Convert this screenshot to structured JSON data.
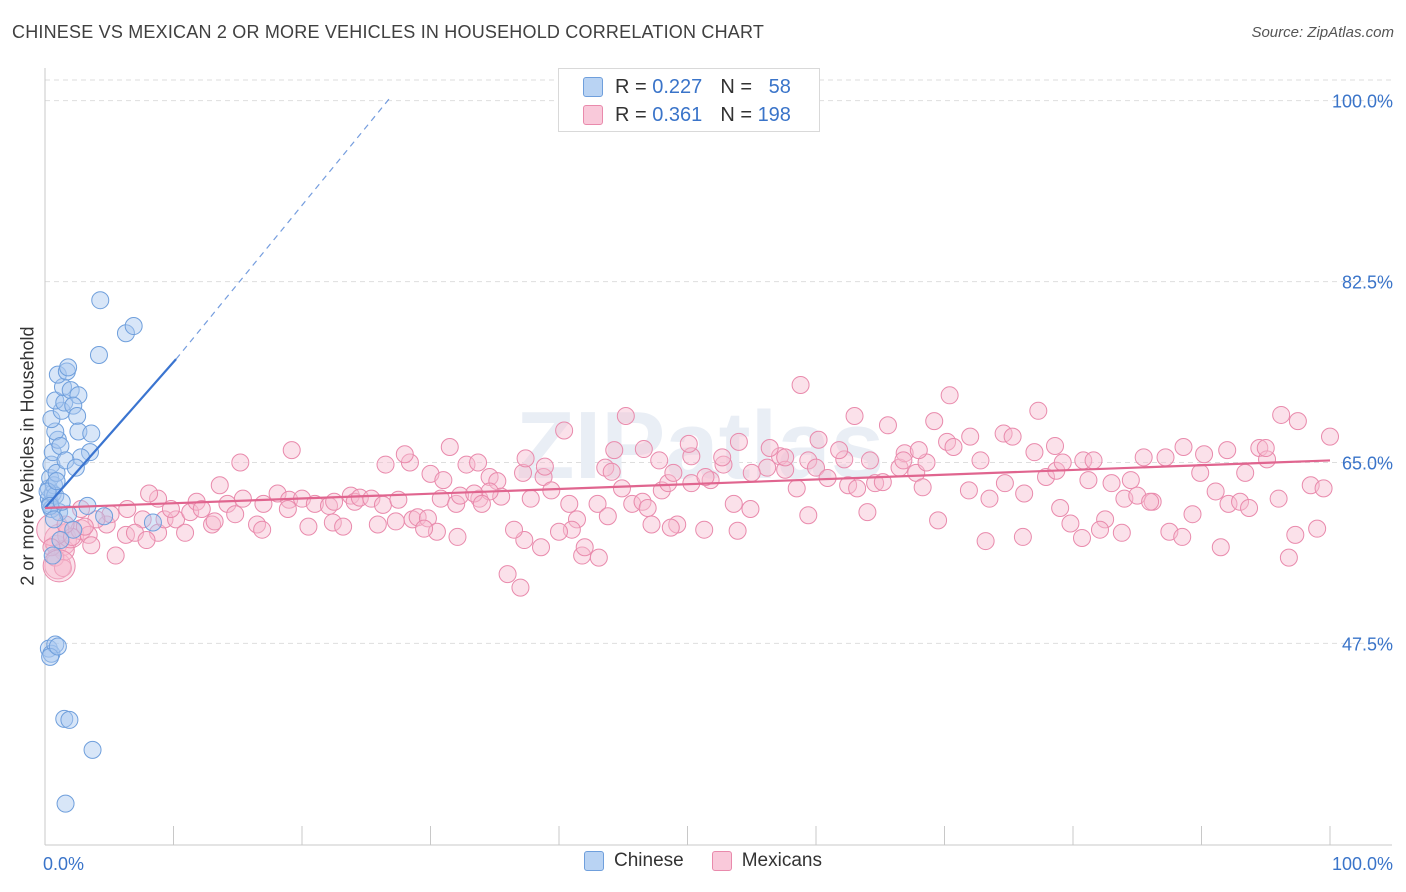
{
  "title": "CHINESE VS MEXICAN 2 OR MORE VEHICLES IN HOUSEHOLD CORRELATION CHART",
  "source": "Source: ZipAtlas.com",
  "watermark": "ZIPatlas",
  "legend": [
    {
      "r_label": "R =",
      "r_value": "0.227",
      "n_label": "N =",
      "n_value": "58"
    },
    {
      "r_label": "R =",
      "r_value": "0.361",
      "n_label": "N =",
      "n_value": "198"
    }
  ],
  "colors": {
    "chinese_fill": "#a9c8f0",
    "chinese_stroke": "#6f9fdc",
    "chinese_line": "#3a74d0",
    "mexican_fill": "#f6bcd0",
    "mexican_stroke": "#e98aac",
    "mexican_line": "#e0658f",
    "axis_label": "#3a74c9",
    "grid": "#dedede"
  },
  "chart_data": {
    "type": "scatter",
    "title": "CHINESE VS MEXICAN 2 OR MORE VEHICLES IN HOUSEHOLD CORRELATION CHART",
    "xlabel": "",
    "ylabel": "2 or more Vehicles in Household",
    "xlim": [
      0,
      100
    ],
    "ylim": [
      28,
      102
    ],
    "x_tick_labels": [
      "0.0%",
      "100.0%"
    ],
    "y_ticks": [
      47.5,
      65.0,
      82.5,
      100.0
    ],
    "y_tick_labels": [
      "47.5%",
      "65.0%",
      "82.5%",
      "100.0%"
    ],
    "series": [
      {
        "name": "Chinese",
        "r": 0.227,
        "n": 58,
        "trend": {
          "x0": 0.0,
          "y0": 60.6,
          "x1": 10.2,
          "y1": 75.0,
          "dash_to_x": 27.0,
          "dash_to_y": 100.5
        },
        "points": [
          [
            0.3,
            61.5
          ],
          [
            0.3,
            62.5
          ],
          [
            0.4,
            61.0
          ],
          [
            0.5,
            60.5
          ],
          [
            0.6,
            62.0
          ],
          [
            0.4,
            63.5
          ],
          [
            0.7,
            62.8
          ],
          [
            0.8,
            61.8
          ],
          [
            0.5,
            64.8
          ],
          [
            0.9,
            64.0
          ],
          [
            0.6,
            66.0
          ],
          [
            1.0,
            67.2
          ],
          [
            0.8,
            68.0
          ],
          [
            1.2,
            66.6
          ],
          [
            0.5,
            69.2
          ],
          [
            1.3,
            70.0
          ],
          [
            0.8,
            71.0
          ],
          [
            1.5,
            70.8
          ],
          [
            1.4,
            72.3
          ],
          [
            1.0,
            73.5
          ],
          [
            1.7,
            73.8
          ],
          [
            2.0,
            72.0
          ],
          [
            2.6,
            71.5
          ],
          [
            1.8,
            74.2
          ],
          [
            2.2,
            70.5
          ],
          [
            2.5,
            69.5
          ],
          [
            2.6,
            68.0
          ],
          [
            3.6,
            67.8
          ],
          [
            3.5,
            66.0
          ],
          [
            2.8,
            65.5
          ],
          [
            1.6,
            65.2
          ],
          [
            2.4,
            64.5
          ],
          [
            1.1,
            60.2
          ],
          [
            1.8,
            60.0
          ],
          [
            3.3,
            60.8
          ],
          [
            4.6,
            59.8
          ],
          [
            2.2,
            58.5
          ],
          [
            0.6,
            56.0
          ],
          [
            1.2,
            57.5
          ],
          [
            8.4,
            59.2
          ],
          [
            0.3,
            47.0
          ],
          [
            0.5,
            46.5
          ],
          [
            0.8,
            47.4
          ],
          [
            0.4,
            46.2
          ],
          [
            1.0,
            47.2
          ],
          [
            1.5,
            40.2
          ],
          [
            1.9,
            40.1
          ],
          [
            3.7,
            37.2
          ],
          [
            1.6,
            32.0
          ],
          [
            4.2,
            75.4
          ],
          [
            6.3,
            77.5
          ],
          [
            6.9,
            78.2
          ],
          [
            4.3,
            80.7
          ],
          [
            0.2,
            62.2
          ],
          [
            0.4,
            60.8
          ],
          [
            0.7,
            59.5
          ],
          [
            1.3,
            61.2
          ],
          [
            0.9,
            63.2
          ]
        ]
      },
      {
        "name": "Mexicans",
        "r": 0.361,
        "n": 198,
        "trend": {
          "x0": 0.0,
          "y0": 60.6,
          "x1": 100.0,
          "y1": 65.2
        },
        "points": [
          [
            0.9,
            57.0
          ],
          [
            1.0,
            55.0
          ],
          [
            1.2,
            57.5
          ],
          [
            1.5,
            56.5
          ],
          [
            2.0,
            58.0
          ],
          [
            0.6,
            58.5
          ],
          [
            2.8,
            58.5
          ],
          [
            3.4,
            58.0
          ],
          [
            4.8,
            59.0
          ],
          [
            5.5,
            56.0
          ],
          [
            6.3,
            58.0
          ],
          [
            7.6,
            59.5
          ],
          [
            7.0,
            58.2
          ],
          [
            8.8,
            58.2
          ],
          [
            7.9,
            57.5
          ],
          [
            9.3,
            59.5
          ],
          [
            10.2,
            59.5
          ],
          [
            11.3,
            60.2
          ],
          [
            8.8,
            61.5
          ],
          [
            11.8,
            61.2
          ],
          [
            13.0,
            59.0
          ],
          [
            13.2,
            59.3
          ],
          [
            14.2,
            61.0
          ],
          [
            13.6,
            62.8
          ],
          [
            15.4,
            61.5
          ],
          [
            15.2,
            65.0
          ],
          [
            17.0,
            61.0
          ],
          [
            16.5,
            59.0
          ],
          [
            18.1,
            62.0
          ],
          [
            19.0,
            61.4
          ],
          [
            19.2,
            66.2
          ],
          [
            20.0,
            61.5
          ],
          [
            21.0,
            61.0
          ],
          [
            22.1,
            60.8
          ],
          [
            22.5,
            61.2
          ],
          [
            22.4,
            59.2
          ],
          [
            23.2,
            58.8
          ],
          [
            23.8,
            61.8
          ],
          [
            24.1,
            61.2
          ],
          [
            24.5,
            61.6
          ],
          [
            25.4,
            61.5
          ],
          [
            25.9,
            59.0
          ],
          [
            26.3,
            60.9
          ],
          [
            27.5,
            61.4
          ],
          [
            28.4,
            65.0
          ],
          [
            28.6,
            59.5
          ],
          [
            29.0,
            59.7
          ],
          [
            29.8,
            59.6
          ],
          [
            30.0,
            63.9
          ],
          [
            30.8,
            61.5
          ],
          [
            31.5,
            66.5
          ],
          [
            32.0,
            61.0
          ],
          [
            32.8,
            64.8
          ],
          [
            32.3,
            61.8
          ],
          [
            33.8,
            61.5
          ],
          [
            34.6,
            63.6
          ],
          [
            35.2,
            63.2
          ],
          [
            35.5,
            61.7
          ],
          [
            37.2,
            64.0
          ],
          [
            37.4,
            65.4
          ],
          [
            37.8,
            61.5
          ],
          [
            38.8,
            63.6
          ],
          [
            38.9,
            64.6
          ],
          [
            40.8,
            61.0
          ],
          [
            40.4,
            68.1
          ],
          [
            41.4,
            59.5
          ],
          [
            41.8,
            56.0
          ],
          [
            43.0,
            61.0
          ],
          [
            43.6,
            64.5
          ],
          [
            44.1,
            64.1
          ],
          [
            44.9,
            62.5
          ],
          [
            45.7,
            61.0
          ],
          [
            46.5,
            61.2
          ],
          [
            46.9,
            60.6
          ],
          [
            48.0,
            62.3
          ],
          [
            48.5,
            63.0
          ],
          [
            49.2,
            59.0
          ],
          [
            50.3,
            65.6
          ],
          [
            51.3,
            58.5
          ],
          [
            50.3,
            63.0
          ],
          [
            51.8,
            63.3
          ],
          [
            52.8,
            64.8
          ],
          [
            53.6,
            61.0
          ],
          [
            53.9,
            58.4
          ],
          [
            54.9,
            60.5
          ],
          [
            56.2,
            64.5
          ],
          [
            57.2,
            65.6
          ],
          [
            57.6,
            64.3
          ],
          [
            58.5,
            62.5
          ],
          [
            59.4,
            65.2
          ],
          [
            60.0,
            64.5
          ],
          [
            59.4,
            59.9
          ],
          [
            60.9,
            63.5
          ],
          [
            62.2,
            65.3
          ],
          [
            62.5,
            62.8
          ],
          [
            63.2,
            62.5
          ],
          [
            64.0,
            60.2
          ],
          [
            64.6,
            63.0
          ],
          [
            65.6,
            68.6
          ],
          [
            66.5,
            64.5
          ],
          [
            66.9,
            65.9
          ],
          [
            67.8,
            64.0
          ],
          [
            68.3,
            62.6
          ],
          [
            68.6,
            65.0
          ],
          [
            69.5,
            59.4
          ],
          [
            70.2,
            67.0
          ],
          [
            70.7,
            66.5
          ],
          [
            71.9,
            62.3
          ],
          [
            72.8,
            65.2
          ],
          [
            73.5,
            61.5
          ],
          [
            74.6,
            67.8
          ],
          [
            75.3,
            67.5
          ],
          [
            76.2,
            62.0
          ],
          [
            77.0,
            66.0
          ],
          [
            77.9,
            63.6
          ],
          [
            78.7,
            64.2
          ],
          [
            79.2,
            65.0
          ],
          [
            79.0,
            60.6
          ],
          [
            79.8,
            59.1
          ],
          [
            80.8,
            65.2
          ],
          [
            81.2,
            63.3
          ],
          [
            81.6,
            65.2
          ],
          [
            82.5,
            59.5
          ],
          [
            83.0,
            63.0
          ],
          [
            84.0,
            61.5
          ],
          [
            84.5,
            63.3
          ],
          [
            85.0,
            61.8
          ],
          [
            86.2,
            61.2
          ],
          [
            87.5,
            58.3
          ],
          [
            88.6,
            66.5
          ],
          [
            89.3,
            60.0
          ],
          [
            90.2,
            65.8
          ],
          [
            91.1,
            62.2
          ],
          [
            91.5,
            56.8
          ],
          [
            92.1,
            61.0
          ],
          [
            93.0,
            61.2
          ],
          [
            93.7,
            60.6
          ],
          [
            94.5,
            66.4
          ],
          [
            95.1,
            65.3
          ],
          [
            96.0,
            61.5
          ],
          [
            96.8,
            55.8
          ],
          [
            97.3,
            58.0
          ],
          [
            98.5,
            62.8
          ],
          [
            99.0,
            58.6
          ],
          [
            99.5,
            62.5
          ],
          [
            100.0,
            67.5
          ],
          [
            97.5,
            69.0
          ],
          [
            96.2,
            69.6
          ],
          [
            95.0,
            66.4
          ],
          [
            93.4,
            64.0
          ],
          [
            92.0,
            66.2
          ],
          [
            89.9,
            64.0
          ],
          [
            88.5,
            57.8
          ],
          [
            87.2,
            65.5
          ],
          [
            86.0,
            61.2
          ],
          [
            85.5,
            65.5
          ],
          [
            83.8,
            58.2
          ],
          [
            82.1,
            58.5
          ],
          [
            80.7,
            57.7
          ],
          [
            78.6,
            66.6
          ],
          [
            77.3,
            70.0
          ],
          [
            76.1,
            57.8
          ],
          [
            74.7,
            63.0
          ],
          [
            73.2,
            57.4
          ],
          [
            72.0,
            67.5
          ],
          [
            70.4,
            71.5
          ],
          [
            69.2,
            69.0
          ],
          [
            68.0,
            66.2
          ],
          [
            66.8,
            65.2
          ],
          [
            65.2,
            63.1
          ],
          [
            64.2,
            65.2
          ],
          [
            63.0,
            69.5
          ],
          [
            61.8,
            66.2
          ],
          [
            60.2,
            67.2
          ],
          [
            58.8,
            72.5
          ],
          [
            57.6,
            65.5
          ],
          [
            56.4,
            66.4
          ],
          [
            55.0,
            64.0
          ],
          [
            54.0,
            67.0
          ],
          [
            52.7,
            65.5
          ],
          [
            51.4,
            63.6
          ],
          [
            50.1,
            66.8
          ],
          [
            48.9,
            64.0
          ],
          [
            47.8,
            65.2
          ],
          [
            46.6,
            66.3
          ],
          [
            45.2,
            69.5
          ],
          [
            44.3,
            66.2
          ],
          [
            43.1,
            55.8
          ],
          [
            42.0,
            56.8
          ],
          [
            41.0,
            58.5
          ],
          [
            40.0,
            58.3
          ],
          [
            38.6,
            56.8
          ],
          [
            37.3,
            57.5
          ],
          [
            36.5,
            58.5
          ],
          [
            34.6,
            62.2
          ],
          [
            33.4,
            62.0
          ],
          [
            32.1,
            57.8
          ],
          [
            30.5,
            58.3
          ],
          [
            29.5,
            58.6
          ],
          [
            10.9,
            58.2
          ],
          [
            12.2,
            60.5
          ],
          [
            14.8,
            60.0
          ],
          [
            16.9,
            58.5
          ],
          [
            18.9,
            60.5
          ],
          [
            9.8,
            60.5
          ],
          [
            8.1,
            62.0
          ],
          [
            6.4,
            60.5
          ],
          [
            5.1,
            60.0
          ],
          [
            4.0,
            59.5
          ],
          [
            3.1,
            58.8
          ],
          [
            2.1,
            57.8
          ],
          [
            1.6,
            59.0
          ],
          [
            0.8,
            55.8
          ],
          [
            1.4,
            54.8
          ],
          [
            0.5,
            56.8
          ],
          [
            2.8,
            60.5
          ],
          [
            3.6,
            57.0
          ],
          [
            20.5,
            58.8
          ],
          [
            27.3,
            59.3
          ],
          [
            31.0,
            63.3
          ],
          [
            26.5,
            64.8
          ],
          [
            33.7,
            65.0
          ],
          [
            34.0,
            61.0
          ],
          [
            36.0,
            54.2
          ],
          [
            37.0,
            52.9
          ],
          [
            39.4,
            62.3
          ],
          [
            43.8,
            59.8
          ],
          [
            47.2,
            59.0
          ],
          [
            48.7,
            58.7
          ],
          [
            28.0,
            65.8
          ]
        ]
      }
    ]
  }
}
